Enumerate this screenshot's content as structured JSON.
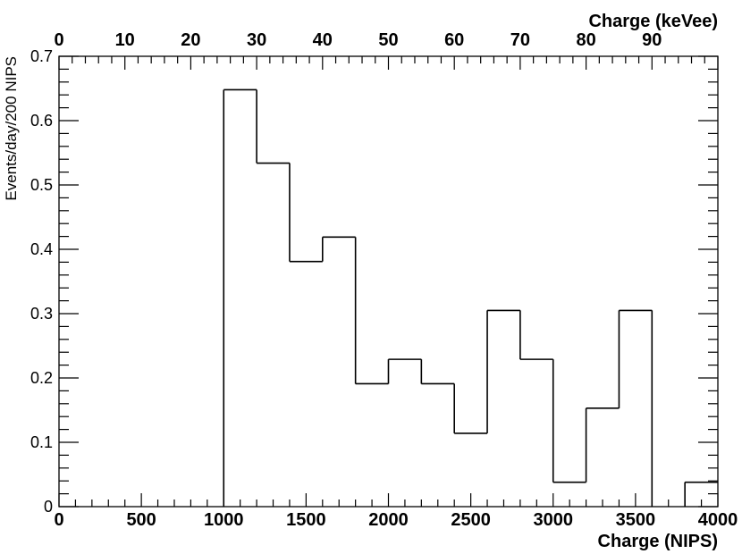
{
  "chart_data": {
    "type": "bar",
    "style": "step-histogram",
    "xlabel": "Charge (NIPS)",
    "x2label": "Charge (keVee)",
    "ylabel": "Events/day/200 NIPS",
    "xlim": [
      0,
      4000
    ],
    "x2lim": [
      0,
      100
    ],
    "ylim": [
      0,
      0.7
    ],
    "x_ticks": [
      "0",
      "500",
      "1000",
      "1500",
      "2000",
      "2500",
      "3000",
      "3500",
      "4000"
    ],
    "x2_ticks": [
      "0",
      "10",
      "20",
      "30",
      "40",
      "50",
      "60",
      "70",
      "80",
      "90"
    ],
    "y_ticks": [
      "0",
      "0.1",
      "0.2",
      "0.3",
      "0.4",
      "0.5",
      "0.6",
      "0.7"
    ],
    "bin_edges": [
      1000,
      1200,
      1400,
      1600,
      1800,
      2000,
      2200,
      2400,
      2600,
      2800,
      3000,
      3200,
      3400,
      3600,
      3800,
      4000
    ],
    "values": [
      0.648,
      0.534,
      0.381,
      0.419,
      0.191,
      0.229,
      0.191,
      0.114,
      0.305,
      0.229,
      0.038,
      0.153,
      0.305,
      0,
      0.038
    ],
    "grid": false,
    "line_color": "#000000"
  }
}
